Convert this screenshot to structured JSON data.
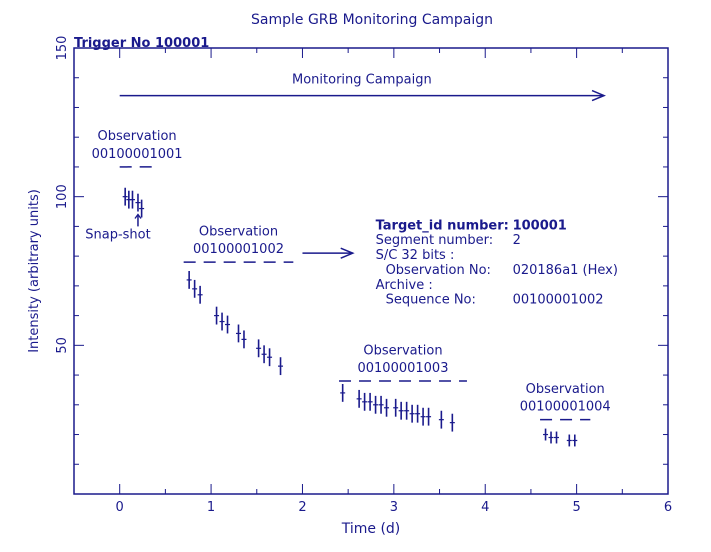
{
  "chart_data": {
    "type": "scatter",
    "title": "Sample GRB Monitoring Campaign",
    "subtitle": "Trigger No 100001",
    "xlabel": "Time (d)",
    "ylabel": "Intensity (arbitrary units)",
    "xlim": [
      -0.5,
      6
    ],
    "ylim": [
      0,
      150
    ],
    "x_ticks": [
      "0",
      "1",
      "2",
      "3",
      "4",
      "5",
      "6"
    ],
    "y_ticks": [
      "50",
      "100",
      "150"
    ],
    "y_tick_values": [
      50,
      100,
      150
    ],
    "x_tick_values": [
      0,
      1,
      2,
      3,
      4,
      5,
      6
    ],
    "color": "#1a1a8c",
    "series": [
      {
        "label": "00100001001",
        "points": [
          {
            "x": 0.06,
            "y": 100,
            "err": 3
          },
          {
            "x": 0.1,
            "y": 99,
            "err": 3
          },
          {
            "x": 0.14,
            "y": 99,
            "err": 3
          },
          {
            "x": 0.2,
            "y": 98,
            "err": 3
          },
          {
            "x": 0.24,
            "y": 96,
            "err": 3
          }
        ],
        "bracket": {
          "x1": 0.0,
          "x2": 0.38,
          "y": 110
        },
        "obs_word": "Observation",
        "label_y": [
          119,
          113
        ]
      },
      {
        "label": "00100001002",
        "points": [
          {
            "x": 0.76,
            "y": 72,
            "err": 3
          },
          {
            "x": 0.82,
            "y": 69,
            "err": 3
          },
          {
            "x": 0.88,
            "y": 67,
            "err": 3
          },
          {
            "x": 1.06,
            "y": 60,
            "err": 3
          },
          {
            "x": 1.12,
            "y": 58,
            "err": 3
          },
          {
            "x": 1.18,
            "y": 57,
            "err": 3
          },
          {
            "x": 1.3,
            "y": 54,
            "err": 3
          },
          {
            "x": 1.36,
            "y": 52,
            "err": 3
          },
          {
            "x": 1.52,
            "y": 49,
            "err": 3
          },
          {
            "x": 1.58,
            "y": 47,
            "err": 3
          },
          {
            "x": 1.64,
            "y": 46,
            "err": 3
          },
          {
            "x": 1.76,
            "y": 43,
            "err": 3
          }
        ],
        "bracket": {
          "x1": 0.7,
          "x2": 1.9,
          "y": 78
        },
        "obs_word": "Observation",
        "label_y": [
          87,
          81
        ]
      },
      {
        "label": "00100001003",
        "points": [
          {
            "x": 2.44,
            "y": 34,
            "err": 3
          },
          {
            "x": 2.62,
            "y": 32,
            "err": 3
          },
          {
            "x": 2.68,
            "y": 31,
            "err": 3
          },
          {
            "x": 2.74,
            "y": 31,
            "err": 3
          },
          {
            "x": 2.8,
            "y": 30,
            "err": 3
          },
          {
            "x": 2.86,
            "y": 30,
            "err": 3
          },
          {
            "x": 2.92,
            "y": 29,
            "err": 3
          },
          {
            "x": 3.02,
            "y": 29,
            "err": 3
          },
          {
            "x": 3.08,
            "y": 28,
            "err": 3
          },
          {
            "x": 3.14,
            "y": 28,
            "err": 3
          },
          {
            "x": 3.2,
            "y": 27,
            "err": 3
          },
          {
            "x": 3.26,
            "y": 27,
            "err": 3
          },
          {
            "x": 3.32,
            "y": 26,
            "err": 3
          },
          {
            "x": 3.38,
            "y": 26,
            "err": 3
          },
          {
            "x": 3.52,
            "y": 25,
            "err": 3
          },
          {
            "x": 3.64,
            "y": 24,
            "err": 3
          }
        ],
        "bracket": {
          "x1": 2.4,
          "x2": 3.8,
          "y": 38
        },
        "obs_word": "Observation",
        "label_y": [
          47,
          41
        ]
      },
      {
        "label": "00100001004",
        "points": [
          {
            "x": 4.66,
            "y": 20,
            "err": 2
          },
          {
            "x": 4.72,
            "y": 19,
            "err": 2
          },
          {
            "x": 4.78,
            "y": 19,
            "err": 2
          },
          {
            "x": 4.92,
            "y": 18,
            "err": 2
          },
          {
            "x": 4.98,
            "y": 18,
            "err": 2
          }
        ],
        "bracket": {
          "x1": 4.6,
          "x2": 5.15,
          "y": 25
        },
        "obs_word": "Observation",
        "label_y": [
          34,
          28
        ]
      }
    ],
    "annotations": {
      "campaign": {
        "text": "Monitoring Campaign",
        "arrow_x": [
          0,
          5.3
        ],
        "arrow_y": 134,
        "text_y": 138
      },
      "snapshot": {
        "text": "Snap-shot",
        "x": 0.2,
        "y": 86,
        "arrow_from_y": 90,
        "arrow_to_y": 94
      },
      "pointer": {
        "x1": 2.0,
        "x2": 2.55,
        "y": 81
      },
      "info_lines": [
        {
          "key": "Target_id number:",
          "value": "100001",
          "indent": 0,
          "bold": true
        },
        {
          "key": "Segment number:",
          "value": "2",
          "indent": 0,
          "bold": false
        },
        {
          "key": "S/C 32 bits :",
          "value": "",
          "indent": 0,
          "bold": false
        },
        {
          "key": "Observation No:",
          "value": "020186a1 (Hex)",
          "indent": 1,
          "bold": false
        },
        {
          "key": "Archive :",
          "value": "",
          "indent": 0,
          "bold": false
        },
        {
          "key": "Sequence No:",
          "value": "00100001002",
          "indent": 1,
          "bold": false
        }
      ],
      "info_pos": {
        "x": 2.8,
        "y_top": 89,
        "line_step": 5
      }
    }
  }
}
